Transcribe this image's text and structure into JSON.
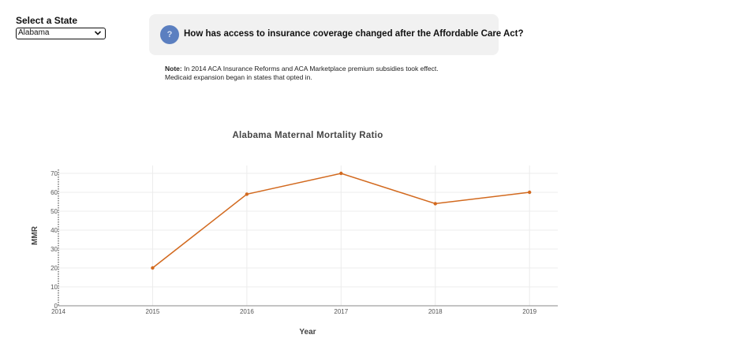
{
  "selector": {
    "label": "Select a State",
    "value": "Alabama"
  },
  "question": {
    "icon": "question-icon",
    "icon_glyph": "?",
    "text": "How has access to insurance coverage changed after the Affordable Care Act?"
  },
  "note": {
    "bold": "Note:",
    "line1": " In 2014 ACA Insurance Reforms and ACA Marketplace premium subsidies took effect.",
    "line2": "Medicaid expansion began in states that opted in."
  },
  "colors": {
    "line": "#d2691e",
    "icon_bg": "#5b7fc0"
  },
  "chart_data": {
    "type": "line",
    "title": "Alabama Maternal Mortality Ratio",
    "xlabel": "Year",
    "ylabel": "MMR",
    "x": [
      2015,
      2016,
      2017,
      2018,
      2019
    ],
    "series": [
      {
        "values": [
          20,
          59,
          70,
          54,
          60
        ]
      }
    ],
    "xlim": [
      2014,
      2019.3
    ],
    "ylim": [
      0,
      70
    ],
    "x_ticks": [
      "2014",
      "2015",
      "2016",
      "2017",
      "2018",
      "2019"
    ],
    "y_ticks": [
      "0",
      "10",
      "20",
      "30",
      "40",
      "50",
      "60",
      "70"
    ],
    "grid": true
  }
}
